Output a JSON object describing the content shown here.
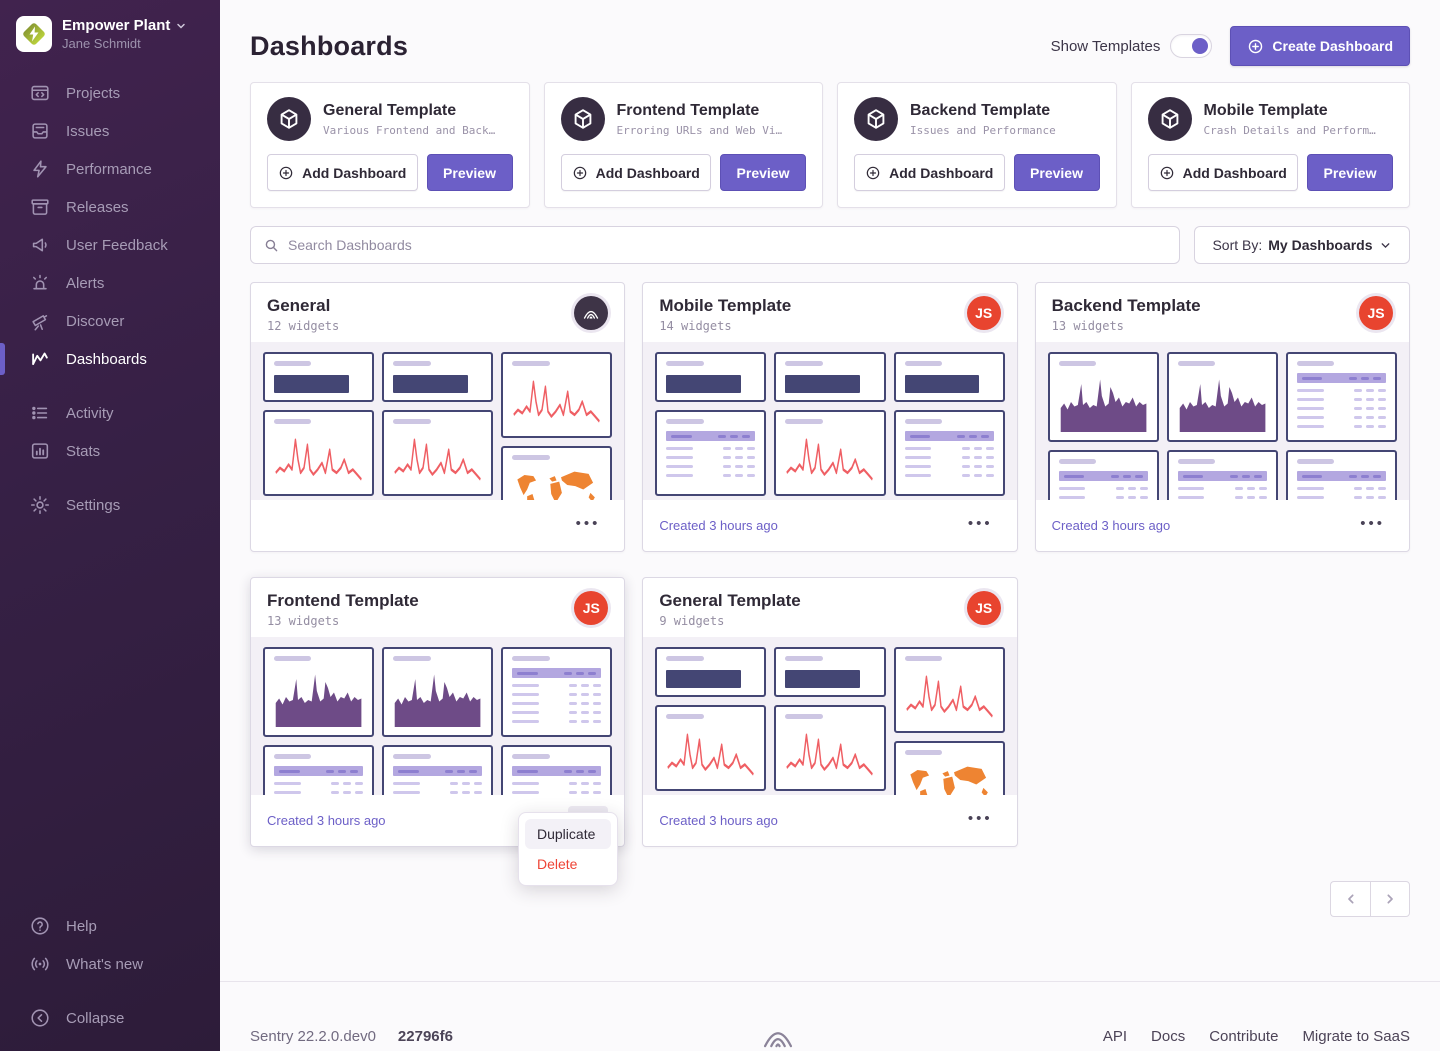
{
  "colors": {
    "accent": "#6C5FC7",
    "danger": "#ee4436",
    "chart_line": "#ef5f64",
    "chart_area": "#6e4b87",
    "chart_navy": "#444674",
    "map_orange": "#ee8432",
    "avatar_red": "#e8442f"
  },
  "sidebar": {
    "org_name": "Empower Plant",
    "user_name": "Jane Schmidt",
    "items": [
      {
        "label": "Projects",
        "icon": "projects",
        "active": false
      },
      {
        "label": "Issues",
        "icon": "issues",
        "active": false
      },
      {
        "label": "Performance",
        "icon": "performance",
        "active": false
      },
      {
        "label": "Releases",
        "icon": "releases",
        "active": false
      },
      {
        "label": "User Feedback",
        "icon": "user-feedback",
        "active": false
      },
      {
        "label": "Alerts",
        "icon": "alerts",
        "active": false
      },
      {
        "label": "Discover",
        "icon": "discover",
        "active": false
      },
      {
        "label": "Dashboards",
        "icon": "dashboards",
        "active": true
      },
      {
        "label": "",
        "icon": "",
        "gap": true
      },
      {
        "label": "Activity",
        "icon": "activity",
        "active": false
      },
      {
        "label": "Stats",
        "icon": "stats",
        "active": false
      },
      {
        "label": "",
        "icon": "",
        "gap": true
      },
      {
        "label": "Settings",
        "icon": "settings",
        "active": false
      }
    ],
    "footer_items": [
      {
        "label": "Help",
        "icon": "help"
      },
      {
        "label": "What's new",
        "icon": "whats-new"
      },
      {
        "label": "",
        "icon": "",
        "gap": true
      },
      {
        "label": "Collapse",
        "icon": "collapse"
      }
    ]
  },
  "header": {
    "title": "Dashboards",
    "show_templates_label": "Show Templates",
    "toggle_on": true,
    "create_button": "Create Dashboard"
  },
  "templates": {
    "add_button": "Add Dashboard",
    "preview_button": "Preview",
    "cards": [
      {
        "title": "General Template",
        "description": "Various Frontend and Back…"
      },
      {
        "title": "Frontend Template",
        "description": "Erroring URLs and Web Vi…"
      },
      {
        "title": "Backend Template",
        "description": "Issues and Performance"
      },
      {
        "title": "Mobile Template",
        "description": "Crash Details and Perform…"
      }
    ]
  },
  "search": {
    "placeholder": "Search Dashboards"
  },
  "sort": {
    "label": "Sort By:",
    "value": "My Dashboards"
  },
  "dashboards": [
    {
      "title": "General",
      "widgets": "12 widgets",
      "created": "",
      "avatar": "sentry",
      "avatar_text": "",
      "preview": [
        [
          "bignum",
          "line",
          "stub"
        ],
        [
          "bignum",
          "line",
          "stub"
        ],
        [
          "line",
          "map"
        ]
      ],
      "menu_open": false
    },
    {
      "title": "Mobile Template",
      "widgets": "14 widgets",
      "created": "Created 3 hours ago",
      "avatar": "letters",
      "avatar_text": "JS",
      "preview": [
        [
          "bignum",
          "table",
          "stub"
        ],
        [
          "bignum",
          "line",
          "stub"
        ],
        [
          "bignum",
          "table",
          "stub"
        ]
      ],
      "menu_open": false
    },
    {
      "title": "Backend Template",
      "widgets": "13 widgets",
      "created": "Created 3 hours ago",
      "avatar": "letters",
      "avatar_text": "JS",
      "preview": [
        [
          "area",
          "table"
        ],
        [
          "area",
          "table"
        ],
        [
          "tabletall",
          "table"
        ]
      ],
      "menu_open": false
    },
    {
      "title": "Frontend Template",
      "widgets": "13 widgets",
      "created": "Created 3 hours ago",
      "avatar": "letters",
      "avatar_text": "JS",
      "preview": [
        [
          "area",
          "table"
        ],
        [
          "area",
          "table"
        ],
        [
          "tabletall",
          "table"
        ]
      ],
      "menu_open": true
    },
    {
      "title": "General Template",
      "widgets": "9 widgets",
      "created": "Created 3 hours ago",
      "avatar": "letters",
      "avatar_text": "JS",
      "preview": [
        [
          "bignum",
          "line",
          "stub"
        ],
        [
          "bignum",
          "line",
          "stub"
        ],
        [
          "line",
          "map"
        ]
      ],
      "menu_open": false
    }
  ],
  "context_menu": {
    "items": [
      {
        "label": "Duplicate",
        "danger": false,
        "hovered": true
      },
      {
        "label": "Delete",
        "danger": true,
        "hovered": false
      }
    ]
  },
  "footer": {
    "version": "Sentry 22.2.0.dev0",
    "build": "22796f6",
    "links": [
      "API",
      "Docs",
      "Contribute",
      "Migrate to SaaS"
    ]
  }
}
